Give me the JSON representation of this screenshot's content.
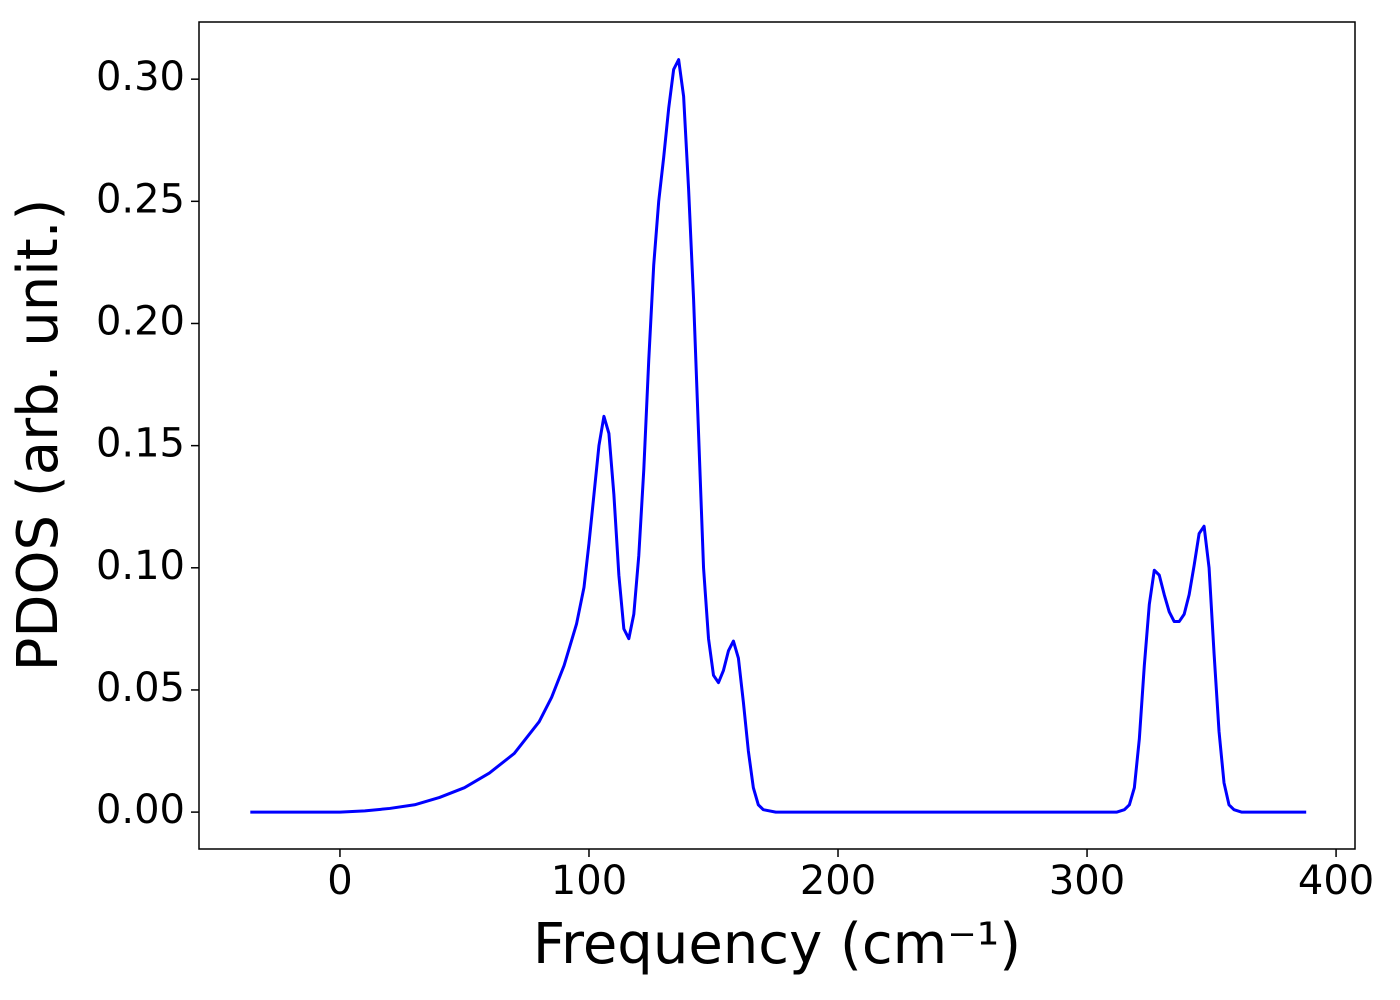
{
  "chart_data": {
    "type": "line",
    "x_label": "Frequency (cm⁻¹)",
    "y_label": "PDOS (arb. unit.)",
    "xlim": [
      -56.6,
      407.6
    ],
    "ylim": [
      -0.0151,
      0.3234
    ],
    "xticks": [
      0,
      100,
      200,
      300,
      400
    ],
    "yticks": [
      {
        "value": 0,
        "label": "0.00"
      },
      {
        "value": 0.05,
        "label": "0.05"
      },
      {
        "value": 0.1,
        "label": "0.10"
      },
      {
        "value": 0.15,
        "label": "0.15"
      },
      {
        "value": 0.2,
        "label": "0.20"
      },
      {
        "value": 0.25,
        "label": "0.25"
      },
      {
        "value": 0.3,
        "label": "0.30"
      }
    ],
    "x": [
      -36,
      0,
      10,
      20,
      30,
      40,
      50,
      60,
      70,
      80,
      85,
      90,
      95,
      98,
      100,
      102,
      104,
      106,
      108,
      110,
      112,
      114,
      116,
      118,
      120,
      122,
      124,
      126,
      128,
      130,
      132,
      134,
      136,
      138,
      140,
      142,
      144,
      146,
      148,
      150,
      152,
      154,
      156,
      158,
      160,
      162,
      164,
      166,
      168,
      170,
      175,
      200,
      300,
      312,
      315,
      317,
      319,
      321,
      323,
      325,
      327,
      329,
      331,
      333,
      335,
      337,
      339,
      341,
      343,
      345,
      347,
      349,
      351,
      353,
      355,
      357,
      359,
      362,
      388
    ],
    "series": [
      {
        "color": "#0000ff",
        "values": [
          0,
          0,
          0.0005,
          0.0015,
          0.003,
          0.006,
          0.01,
          0.016,
          0.024,
          0.037,
          0.047,
          0.06,
          0.077,
          0.092,
          0.11,
          0.13,
          0.15,
          0.162,
          0.155,
          0.13,
          0.097,
          0.075,
          0.071,
          0.081,
          0.105,
          0.14,
          0.185,
          0.224,
          0.25,
          0.268,
          0.288,
          0.304,
          0.308,
          0.293,
          0.255,
          0.21,
          0.155,
          0.1,
          0.071,
          0.056,
          0.053,
          0.058,
          0.066,
          0.07,
          0.063,
          0.045,
          0.025,
          0.01,
          0.003,
          0.001,
          0,
          0,
          0,
          0,
          0.001,
          0.003,
          0.01,
          0.03,
          0.06,
          0.085,
          0.099,
          0.097,
          0.089,
          0.082,
          0.078,
          0.078,
          0.081,
          0.089,
          0.101,
          0.114,
          0.117,
          0.1,
          0.065,
          0.033,
          0.012,
          0.003,
          0.001,
          0,
          0
        ]
      }
    ]
  }
}
